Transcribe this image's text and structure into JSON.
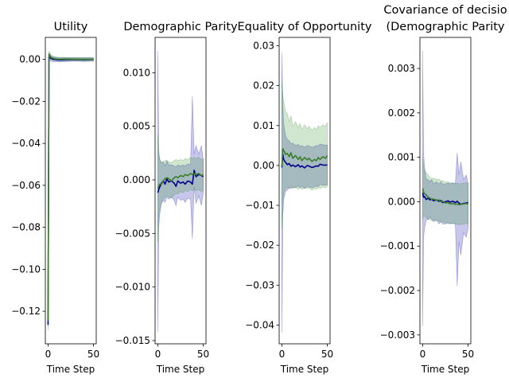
{
  "chart_data": [
    {
      "type": "line",
      "title_lines": [
        "Utility"
      ],
      "xlabel": "Time Step",
      "ylabel": "",
      "xlim": [
        -3,
        53
      ],
      "ylim": [
        -0.1355,
        0.0105
      ],
      "xticks": [
        0,
        50
      ],
      "yticks": [
        0.0,
        -0.02,
        -0.04,
        -0.06,
        -0.08,
        -0.1,
        -0.12
      ],
      "ytick_labels": [
        "0.00",
        "−0.02",
        "−0.04",
        "−0.06",
        "−0.08",
        "−0.10",
        "−0.12"
      ],
      "series": [
        {
          "color": "#00008b",
          "band_color": "#0000aa",
          "x": [
            0,
            1,
            2,
            3,
            5,
            8,
            12,
            20,
            30,
            40,
            50
          ],
          "y": [
            -0.1265,
            0.0015,
            0.001,
            0.0005,
            0.0002,
            0.0,
            -0.0002,
            -0.0001,
            0.0,
            -0.0001,
            0.0
          ],
          "lower": [
            -0.129,
            -0.0005,
            -0.0005,
            -0.0008,
            -0.001,
            -0.001,
            -0.0012,
            -0.001,
            -0.0008,
            -0.001,
            -0.0008
          ],
          "upper": [
            -0.124,
            0.003,
            0.0025,
            0.0018,
            0.0013,
            0.001,
            0.0008,
            0.0008,
            0.0008,
            0.0008,
            0.0008
          ]
        },
        {
          "color": "#3a7d2a",
          "band_color": "#2e8b1e",
          "x": [
            0,
            1,
            2,
            3,
            5,
            8,
            12,
            20,
            30,
            40,
            50
          ],
          "y": [
            -0.1245,
            0.0025,
            0.0018,
            0.001,
            0.0006,
            0.0003,
            0.0001,
            0.0002,
            0.0001,
            0.0001,
            0.0001
          ],
          "lower": [
            -0.127,
            0.0008,
            0.0005,
            0.0,
            -0.0005,
            -0.0006,
            -0.0008,
            -0.0007,
            -0.0006,
            -0.0007,
            -0.0006
          ],
          "upper": [
            -0.122,
            0.004,
            0.0032,
            0.0022,
            0.0017,
            0.0013,
            0.001,
            0.001,
            0.0009,
            0.0009,
            0.0009
          ]
        }
      ]
    },
    {
      "type": "line",
      "title_lines": [
        "Demographic Parity"
      ],
      "xlabel": "Time Step",
      "ylabel": "",
      "xlim": [
        -3,
        53
      ],
      "ylim": [
        -0.0153,
        0.0133
      ],
      "xticks": [
        0,
        50
      ],
      "yticks": [
        0.01,
        0.005,
        0.0,
        -0.005,
        -0.01,
        -0.015
      ],
      "ytick_labels": [
        "0.010",
        "0.005",
        "0.000",
        "−0.005",
        "−0.010",
        "−0.015"
      ],
      "series": [
        {
          "color": "#00008b",
          "band_color": "#0000aa",
          "x": [
            0,
            1,
            2,
            4,
            6,
            8,
            10,
            12,
            15,
            18,
            20,
            22,
            25,
            28,
            30,
            33,
            36,
            38,
            40,
            42,
            45,
            48,
            50
          ],
          "y": [
            -0.0012,
            -0.0009,
            -0.0007,
            -0.0003,
            -0.0001,
            -0.0004,
            0.0001,
            -0.0002,
            -0.0001,
            -0.0003,
            -0.0006,
            -0.0001,
            -0.0003,
            -0.0002,
            -0.0004,
            -0.0001,
            -0.0002,
            -0.0004,
            0.0009,
            0.0003,
            0.0005,
            0.0004,
            0.0003
          ],
          "lower": [
            -0.0142,
            -0.0045,
            -0.0033,
            -0.0022,
            -0.0019,
            -0.0021,
            -0.0016,
            -0.0018,
            -0.0016,
            -0.0019,
            -0.0024,
            -0.0016,
            -0.0019,
            -0.0018,
            -0.0021,
            -0.0017,
            -0.0018,
            -0.0055,
            -0.0006,
            -0.0022,
            -0.0015,
            -0.0024,
            -0.0012
          ],
          "upper": [
            0.012,
            0.0028,
            0.0019,
            0.0016,
            0.0017,
            0.0013,
            0.0018,
            0.0014,
            0.0014,
            0.0013,
            0.0012,
            0.0014,
            0.0013,
            0.0014,
            0.0013,
            0.0015,
            0.0014,
            0.0078,
            0.0024,
            0.0032,
            0.0024,
            0.0032,
            0.0018
          ]
        },
        {
          "color": "#3a7d2a",
          "band_color": "#2e8b1e",
          "x": [
            0,
            1,
            2,
            4,
            6,
            8,
            10,
            12,
            15,
            18,
            20,
            22,
            25,
            28,
            30,
            33,
            36,
            38,
            40,
            42,
            45,
            48,
            50
          ],
          "y": [
            -0.0008,
            -0.0006,
            -0.0004,
            -0.0004,
            -0.0001,
            0.0001,
            0.0002,
            0.0001,
            -0.0001,
            0.0002,
            0.0003,
            0.0002,
            0.0004,
            0.0003,
            0.0005,
            0.0004,
            0.0006,
            0.0005,
            0.0006,
            0.0005,
            0.0006,
            0.0004,
            0.0005
          ],
          "lower": [
            -0.0058,
            -0.0034,
            -0.0027,
            -0.0022,
            -0.0018,
            -0.0016,
            -0.0015,
            -0.0016,
            -0.0017,
            -0.0014,
            -0.0013,
            -0.0013,
            -0.0011,
            -0.0012,
            -0.001,
            -0.0011,
            -0.0009,
            -0.001,
            -0.0009,
            -0.001,
            -0.0009,
            -0.0011,
            -0.001
          ],
          "upper": [
            0.0042,
            0.0024,
            0.002,
            0.0016,
            0.0017,
            0.0018,
            0.0018,
            0.0017,
            0.0016,
            0.0018,
            0.0019,
            0.0018,
            0.0019,
            0.0018,
            0.002,
            0.0019,
            0.0021,
            0.002,
            0.0021,
            0.002,
            0.0021,
            0.0019,
            0.002
          ]
        }
      ]
    },
    {
      "type": "line",
      "title_lines": [
        "Equality of Opportunity"
      ],
      "xlabel": "Time Step",
      "ylabel": "",
      "xlim": [
        -3,
        53
      ],
      "ylim": [
        -0.0447,
        0.0321
      ],
      "xticks": [
        0,
        50
      ],
      "yticks": [
        0.03,
        0.02,
        0.01,
        0.0,
        -0.01,
        -0.02,
        -0.03,
        -0.04
      ],
      "ytick_labels": [
        "0.03",
        "0.02",
        "0.01",
        "0.00",
        "−0.01",
        "−0.02",
        "−0.03",
        "−0.04"
      ],
      "series": [
        {
          "color": "#00008b",
          "band_color": "#0000aa",
          "x": [
            0,
            1,
            2,
            4,
            6,
            8,
            10,
            12,
            15,
            18,
            20,
            22,
            25,
            28,
            30,
            33,
            36,
            38,
            40,
            42,
            45,
            48,
            50
          ],
          "y": [
            -0.0005,
            0.0028,
            0.0015,
            0.0008,
            0.0002,
            0.0005,
            -0.0002,
            0.0001,
            -0.0003,
            0.0002,
            -0.0004,
            -0.0001,
            -0.0006,
            0.0,
            -0.0002,
            -0.0005,
            -0.0003,
            -0.0001,
            -0.0002,
            0.0003,
            0.0001,
            0.0001,
            0.0001
          ],
          "lower": [
            -0.0418,
            -0.013,
            -0.0085,
            -0.0065,
            -0.0062,
            -0.0055,
            -0.0058,
            -0.0054,
            -0.0056,
            -0.0051,
            -0.0056,
            -0.0052,
            -0.0058,
            -0.0052,
            -0.0055,
            -0.0056,
            -0.0054,
            -0.0052,
            -0.0053,
            -0.0048,
            -0.005,
            -0.0049,
            -0.0049
          ],
          "upper": [
            0.0282,
            0.015,
            0.0105,
            0.0075,
            0.0065,
            0.0062,
            0.0055,
            0.0056,
            0.005,
            0.0053,
            0.0048,
            0.005,
            0.0046,
            0.005,
            0.0049,
            0.0046,
            0.0048,
            0.005,
            0.0049,
            0.0054,
            0.0052,
            0.0051,
            0.0051
          ]
        },
        {
          "color": "#3a7d2a",
          "band_color": "#2e8b1e",
          "x": [
            0,
            1,
            2,
            4,
            6,
            8,
            10,
            12,
            15,
            18,
            20,
            22,
            25,
            28,
            30,
            33,
            36,
            38,
            40,
            42,
            45,
            48,
            50
          ],
          "y": [
            -0.0002,
            0.0042,
            0.0038,
            0.0028,
            0.003,
            0.0022,
            0.0032,
            0.0018,
            0.0025,
            0.0015,
            0.0022,
            0.0012,
            0.002,
            0.0014,
            0.0018,
            0.001,
            0.0015,
            0.0012,
            0.002,
            0.0015,
            0.0022,
            0.0018,
            0.0025
          ],
          "lower": [
            -0.016,
            -0.009,
            -0.007,
            -0.0058,
            -0.0055,
            -0.0058,
            -0.0052,
            -0.0058,
            -0.0054,
            -0.006,
            -0.0055,
            -0.006,
            -0.0056,
            -0.0058,
            -0.0056,
            -0.0062,
            -0.0058,
            -0.006,
            -0.0055,
            -0.0058,
            -0.0054,
            -0.0056,
            -0.0052
          ],
          "upper": [
            0.021,
            0.0175,
            0.016,
            0.0135,
            0.013,
            0.011,
            0.0125,
            0.0098,
            0.011,
            0.0095,
            0.0105,
            0.009,
            0.0102,
            0.0092,
            0.0098,
            0.0088,
            0.0095,
            0.009,
            0.01,
            0.0095,
            0.0102,
            0.0098,
            0.0108
          ]
        }
      ]
    },
    {
      "type": "line",
      "title_lines": [
        "Covariance of decisio",
        "(Demographic Parity"
      ],
      "xlabel": "Time Step",
      "ylabel": "",
      "xlim": [
        -3,
        53
      ],
      "ylim": [
        -0.0032,
        0.0037
      ],
      "xticks": [
        0,
        50
      ],
      "yticks": [
        0.003,
        0.002,
        0.001,
        0.0,
        -0.001,
        -0.002,
        -0.003
      ],
      "ytick_labels": [
        "0.003",
        "0.002",
        "0.001",
        "0.000",
        "−0.001",
        "−0.002",
        "−0.003"
      ],
      "series": [
        {
          "color": "#00008b",
          "band_color": "#0000aa",
          "x": [
            0,
            1,
            2,
            4,
            6,
            8,
            10,
            12,
            15,
            18,
            20,
            22,
            25,
            28,
            30,
            33,
            36,
            38,
            40,
            42,
            45,
            48,
            50
          ],
          "y": [
            0.0002,
            0.0001,
            0.00012,
            5e-05,
            8e-05,
            4e-05,
            6e-05,
            2e-05,
            4e-05,
            1e-05,
            3e-05,
            -2e-05,
            0.0,
            2e-05,
            -1e-05,
            1e-05,
            -2e-05,
            1e-05,
            -3e-05,
            -6e-05,
            -4e-05,
            -3e-05,
            -2e-05
          ],
          "lower": [
            -0.0028,
            -0.0008,
            -0.0006,
            -0.0004,
            -0.0004,
            -0.00035,
            -0.0004,
            -0.00045,
            -0.0004,
            -0.0005,
            -0.00045,
            -0.0005,
            -0.0005,
            -0.00048,
            -0.0005,
            -0.00048,
            -0.0005,
            -0.0019,
            -0.0009,
            -0.0012,
            -0.0007,
            -0.0008,
            -0.0006
          ],
          "upper": [
            0.0034,
            0.0011,
            0.0008,
            0.0005,
            0.0005,
            0.00045,
            0.0005,
            0.0004,
            0.00045,
            0.0004,
            0.00045,
            0.0004,
            0.0004,
            0.00042,
            0.0004,
            0.00042,
            0.0004,
            0.0011,
            0.0006,
            0.0009,
            0.0005,
            0.0006,
            0.0004
          ]
        },
        {
          "color": "#3a7d2a",
          "band_color": "#2e8b1e",
          "x": [
            0,
            1,
            2,
            4,
            6,
            8,
            10,
            12,
            15,
            18,
            20,
            22,
            25,
            28,
            30,
            33,
            36,
            38,
            40,
            42,
            45,
            48,
            50
          ],
          "y": [
            0.0003,
            0.00022,
            0.00018,
            0.00015,
            0.0001,
            8e-05,
            5e-05,
            6e-05,
            3e-05,
            4e-05,
            0.0,
            1e-05,
            -3e-05,
            -2e-05,
            -5e-05,
            -4e-05,
            -6e-05,
            -5e-05,
            -7e-05,
            -6e-05,
            -5e-05,
            -4e-05,
            -5e-05
          ],
          "lower": [
            -0.0004,
            -0.0003,
            -0.00032,
            -0.00035,
            -0.0004,
            -0.0004,
            -0.00042,
            -0.00041,
            -0.00044,
            -0.00043,
            -0.00046,
            -0.00045,
            -0.00048,
            -0.00047,
            -0.0005,
            -0.00049,
            -0.00051,
            -0.0005,
            -0.00052,
            -0.00051,
            -0.0005,
            -0.00049,
            -0.0005
          ],
          "upper": [
            0.001,
            0.0008,
            0.0007,
            0.00065,
            0.0006,
            0.00056,
            0.00052,
            0.00053,
            0.0005,
            0.00051,
            0.00047,
            0.00048,
            0.00044,
            0.00045,
            0.00042,
            0.00043,
            0.00041,
            0.00042,
            0.0004,
            0.00041,
            0.00042,
            0.00043,
            0.00042
          ]
        }
      ]
    }
  ]
}
